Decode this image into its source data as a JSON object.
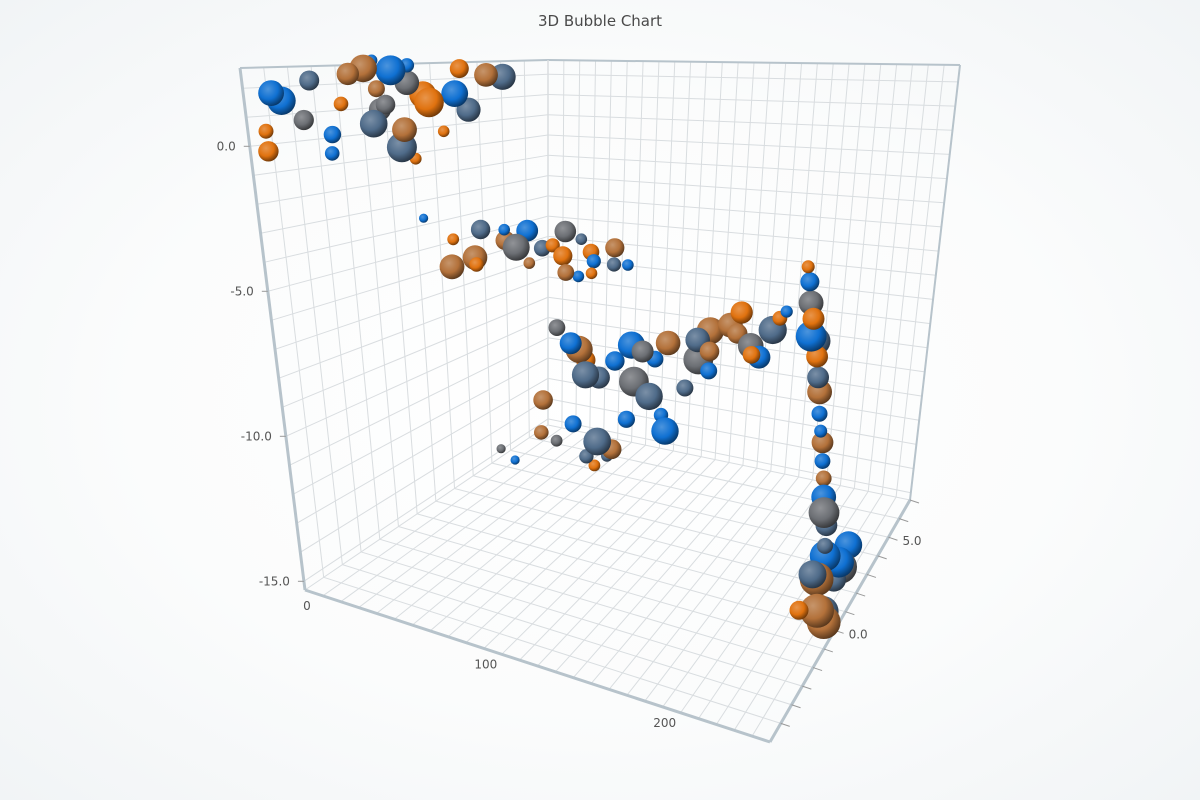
{
  "chart_data": {
    "type": "bubble3d",
    "title": "3D Bubble Chart",
    "x_range": [
      0,
      260
    ],
    "y_range": [
      -15.3,
      2.7
    ],
    "z_range": [
      -6,
      7
    ],
    "x_ticks": [
      0,
      100,
      200
    ],
    "y_ticks": [
      0,
      -5,
      -10,
      -15
    ],
    "z_ticks": [
      0,
      5
    ],
    "x_tick_labels": [
      "0",
      "100",
      "200"
    ],
    "y_tick_labels": [
      "0.0",
      "-5.0",
      "-10.0",
      "-15.0"
    ],
    "z_tick_labels": [
      "0.0",
      "5.0"
    ],
    "grid": true,
    "colors": [
      "#0f70d2",
      "#4f6b89",
      "#6c6f74",
      "#b3713a",
      "#e0720f"
    ],
    "point_format": [
      "x",
      "y",
      "z",
      "size",
      "color_index"
    ],
    "points": [
      [
        2,
        1.8,
        -5,
        8,
        0
      ],
      [
        4,
        2.2,
        -3.5,
        6,
        1
      ],
      [
        1,
        1.5,
        -4.5,
        9,
        0
      ],
      [
        6,
        2.4,
        -2,
        7,
        3
      ],
      [
        8,
        2.6,
        -1.5,
        9,
        3
      ],
      [
        3,
        0.5,
        -5.5,
        4,
        4
      ],
      [
        5,
        0.8,
        -4,
        6,
        2
      ],
      [
        7,
        0.2,
        -3,
        5,
        0
      ],
      [
        10,
        2.5,
        -0.5,
        10,
        0
      ],
      [
        12,
        2.0,
        0,
        8,
        2
      ],
      [
        14,
        1.5,
        0.5,
        9,
        4
      ],
      [
        9,
        1.0,
        -1,
        7,
        2
      ],
      [
        11,
        0.5,
        -1.5,
        9,
        1
      ],
      [
        13,
        -0.5,
        -0.5,
        10,
        1
      ],
      [
        6,
        -0.5,
        -3,
        4,
        0
      ],
      [
        15,
        2.7,
        -0.2,
        4,
        0
      ],
      [
        16,
        2.5,
        2,
        6,
        4
      ],
      [
        18,
        2.2,
        3,
        8,
        3
      ],
      [
        17,
        1.2,
        0.5,
        10,
        4
      ],
      [
        19,
        1.5,
        1.5,
        9,
        0
      ],
      [
        20,
        0.8,
        2,
        8,
        1
      ],
      [
        8,
        1.8,
        -1,
        5,
        3
      ],
      [
        12,
        1.2,
        -1,
        6,
        2
      ],
      [
        15,
        0.2,
        -0.5,
        8,
        3
      ],
      [
        18,
        0.0,
        1,
        3,
        4
      ],
      [
        14,
        -1.0,
        0,
        3,
        4
      ],
      [
        3,
        -0.2,
        -5.5,
        6,
        4
      ],
      [
        9,
        2.9,
        -1.2,
        3,
        0
      ],
      [
        21,
        2.1,
        3.5,
        9,
        1
      ],
      [
        7,
        1.3,
        -2.5,
        4,
        4
      ],
      [
        22,
        -3.2,
        -0.5,
        2,
        0
      ],
      [
        26,
        -4.2,
        0.5,
        3,
        4
      ],
      [
        30,
        -4,
        1.5,
        6,
        1
      ],
      [
        32,
        -5.0,
        1,
        8,
        3
      ],
      [
        35,
        -5.2,
        0.8,
        4,
        4
      ],
      [
        38,
        -4.5,
        2,
        6,
        3
      ],
      [
        42,
        -4.8,
        2.2,
        9,
        2
      ],
      [
        44,
        -4.2,
        2.6,
        7,
        0
      ],
      [
        40,
        -4.0,
        1.8,
        3,
        0
      ],
      [
        48,
        -5,
        3,
        5,
        1
      ],
      [
        55,
        -4.4,
        3.6,
        7,
        2
      ],
      [
        58,
        -5.3,
        3.2,
        6,
        4
      ],
      [
        62,
        -5.9,
        3,
        5,
        3
      ],
      [
        60,
        -4.8,
        4,
        3,
        1
      ],
      [
        66,
        -5.3,
        4,
        5,
        4
      ],
      [
        70,
        -5.6,
        3.8,
        4,
        0
      ],
      [
        72,
        -6.0,
        3.5,
        3,
        4
      ],
      [
        75,
        -5.2,
        4.5,
        6,
        3
      ],
      [
        78,
        -5.8,
        4.2,
        4,
        1
      ],
      [
        80,
        -6.0,
        4.8,
        3,
        0
      ],
      [
        52,
        -4.9,
        3.2,
        4,
        4
      ],
      [
        46,
        -5.5,
        2.5,
        3,
        3
      ],
      [
        28,
        -5.2,
        0.2,
        8,
        3
      ],
      [
        64,
        -6.2,
        3.5,
        3,
        0
      ],
      [
        62,
        -8.0,
        2.5,
        5,
        2
      ],
      [
        67,
        -8.7,
        2.8,
        7,
        0
      ],
      [
        70,
        -9.0,
        3,
        9,
        3
      ],
      [
        72,
        -9.5,
        3.2,
        6,
        4
      ],
      [
        74,
        -10,
        3,
        9,
        1
      ],
      [
        77,
        -10.3,
        3.5,
        7,
        1
      ],
      [
        64,
        -10.5,
        1.5,
        6,
        3
      ],
      [
        68,
        -11.5,
        1,
        4,
        3
      ],
      [
        72,
        -12,
        1.5,
        3,
        2
      ],
      [
        77,
        -11.5,
        2,
        5,
        0
      ],
      [
        87,
        -9.5,
        3.5,
        6,
        0
      ],
      [
        92,
        -9.0,
        4,
        9,
        0
      ],
      [
        97,
        -9.3,
        4.2,
        7,
        2
      ],
      [
        94,
        -10.5,
        4,
        10,
        2
      ],
      [
        102,
        -9.7,
        4.5,
        5,
        0
      ],
      [
        107,
        -9.1,
        4.8,
        8,
        3
      ],
      [
        104,
        -11,
        4,
        9,
        1
      ],
      [
        100,
        -11.5,
        3,
        5,
        0
      ],
      [
        92,
        -12,
        2,
        9,
        1
      ],
      [
        96,
        -12.5,
        2.5,
        6,
        3
      ],
      [
        90,
        -13,
        2.8,
        3,
        1
      ],
      [
        107,
        -12,
        4.5,
        4,
        0
      ],
      [
        112,
        -12.5,
        4.3,
        9,
        0
      ],
      [
        117,
        -11,
        5,
        5,
        1
      ],
      [
        122,
        -9,
        5.2,
        8,
        1
      ],
      [
        120,
        -10,
        5.5,
        10,
        2
      ],
      [
        127,
        -8.7,
        5.5,
        9,
        3
      ],
      [
        132,
        -9.3,
        5,
        6,
        3
      ],
      [
        137,
        -8.5,
        5.8,
        8,
        3
      ],
      [
        142,
        -8,
        6,
        7,
        4
      ],
      [
        134,
        -10,
        4.8,
        5,
        0
      ],
      [
        80,
        -13,
        2.5,
        4,
        1
      ],
      [
        82,
        -13.5,
        2.8,
        3,
        4
      ],
      [
        57,
        -12.5,
        0.5,
        2,
        0
      ],
      [
        52,
        -12,
        0.2,
        2,
        2
      ],
      [
        160,
        -7.8,
        3.8,
        6,
        3
      ],
      [
        167,
        -8.3,
        4,
        8,
        2
      ],
      [
        171,
        -8.8,
        4.2,
        7,
        0
      ],
      [
        176,
        -7.8,
        4.5,
        9,
        1
      ],
      [
        180,
        -7.3,
        4.5,
        4,
        4
      ],
      [
        172,
        -8.4,
        3.5,
        5,
        4
      ],
      [
        184,
        -7.0,
        4.5,
        3,
        0
      ],
      [
        233,
        -3.3,
        -1.2,
        3,
        4
      ],
      [
        234,
        -3.8,
        -1.1,
        5,
        0
      ],
      [
        235,
        -4.5,
        -1,
        7,
        2
      ],
      [
        237,
        -5,
        -1,
        6,
        4
      ],
      [
        236,
        -5.6,
        -0.9,
        9,
        0
      ],
      [
        238,
        -5.8,
        -0.7,
        8,
        1
      ],
      [
        239,
        -6.3,
        -0.7,
        6,
        4
      ],
      [
        240,
        -7,
        -0.6,
        6,
        1
      ],
      [
        241,
        -7.5,
        -0.5,
        7,
        3
      ],
      [
        242,
        -8.2,
        -0.5,
        4,
        0
      ],
      [
        243,
        -8.8,
        -0.4,
        3,
        0
      ],
      [
        244,
        -9.2,
        -0.3,
        6,
        3
      ],
      [
        245,
        -9.8,
        -0.3,
        4,
        0
      ],
      [
        246,
        -10.4,
        -0.2,
        4,
        3
      ],
      [
        247,
        -11,
        -0.2,
        7,
        0
      ],
      [
        248,
        -11.5,
        -0.2,
        9,
        2
      ],
      [
        249,
        -12,
        0,
        6,
        1
      ],
      [
        251,
        -12.5,
        -0.3,
        4,
        1
      ],
      [
        250,
        -13,
        0,
        9,
        0
      ],
      [
        249,
        -13.5,
        -0.5,
        10,
        3
      ],
      [
        254,
        -13.6,
        0.8,
        9,
        0
      ],
      [
        255,
        -13.4,
        1.5,
        8,
        0
      ],
      [
        253,
        -14,
        1.2,
        10,
        2
      ],
      [
        252,
        -14.2,
        0.8,
        7,
        1
      ],
      [
        251,
        -14.5,
        -0.5,
        10,
        3
      ],
      [
        246,
        -14,
        -1.5,
        5,
        4
      ],
      [
        252,
        -14.8,
        0,
        9,
        1
      ],
      [
        254,
        -15,
        -0.2,
        10,
        3
      ],
      [
        248,
        -13.2,
        -0.8,
        8,
        1
      ]
    ]
  }
}
